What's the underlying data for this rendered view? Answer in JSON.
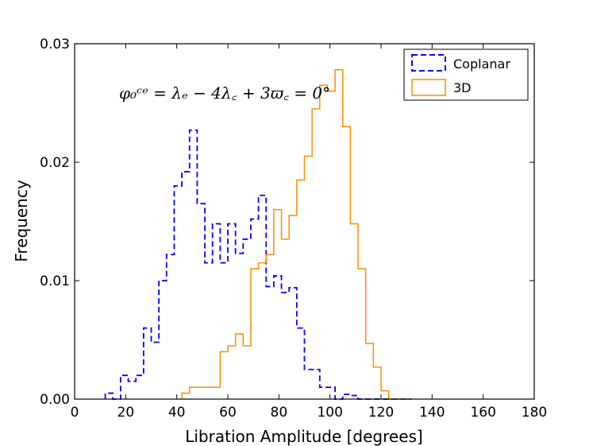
{
  "chart_data": {
    "type": "histogram-step",
    "title": "",
    "xlabel": "Libration Amplitude [degrees]",
    "ylabel": "Frequency",
    "xlim": [
      0,
      180
    ],
    "ylim": [
      0,
      0.03
    ],
    "xticks": [
      "0",
      "20",
      "40",
      "60",
      "80",
      "100",
      "120",
      "140",
      "160",
      "180"
    ],
    "yticks": [
      "0.00",
      "0.01",
      "0.02",
      "0.03"
    ],
    "annotation": "φ₀ᶜᵉ = λₑ − 4λ꜀ + 3ϖ꜀ = 0°",
    "legend_position": "top-right",
    "series": [
      {
        "name": "Coplanar",
        "style": "dashed",
        "color": "#0000ff",
        "bin_edges": [
          12,
          15,
          18,
          21,
          24,
          27,
          30,
          33,
          36,
          39,
          42,
          45,
          48,
          51,
          54,
          57,
          60,
          63,
          66,
          69,
          72,
          75,
          78,
          81,
          84,
          87,
          90,
          93,
          96,
          99,
          102,
          105,
          108,
          111,
          114,
          117,
          120,
          123,
          126,
          129,
          132
        ],
        "values": [
          0.0005,
          0.0,
          0.002,
          0.0015,
          0.002,
          0.006,
          0.0048,
          0.01,
          0.0122,
          0.018,
          0.0192,
          0.0227,
          0.0165,
          0.0115,
          0.0148,
          0.0115,
          0.0148,
          0.0123,
          0.0135,
          0.0152,
          0.0172,
          0.0095,
          0.0104,
          0.009,
          0.0094,
          0.006,
          0.0025,
          0.0025,
          0.001,
          0.001,
          0.0,
          0.0004,
          0.0003,
          0.0,
          0.0,
          0.0,
          0.0,
          0.0,
          0.0,
          0.0
        ]
      },
      {
        "name": "3D",
        "style": "solid",
        "color": "#ff8c00",
        "bin_edges": [
          42,
          45,
          48,
          51,
          54,
          57,
          60,
          63,
          66,
          69,
          72,
          75,
          78,
          81,
          84,
          87,
          90,
          93,
          96,
          99,
          102,
          105,
          108,
          111,
          114,
          117,
          120,
          123,
          126,
          129,
          132
        ],
        "values": [
          0.0005,
          0.001,
          0.001,
          0.001,
          0.001,
          0.004,
          0.0045,
          0.0055,
          0.0045,
          0.011,
          0.0115,
          0.0122,
          0.016,
          0.0135,
          0.0155,
          0.0185,
          0.0205,
          0.0245,
          0.0265,
          0.026,
          0.0278,
          0.023,
          0.0148,
          0.011,
          0.0047,
          0.0027,
          0.0007,
          0.0,
          0.0,
          0.0
        ]
      }
    ]
  }
}
